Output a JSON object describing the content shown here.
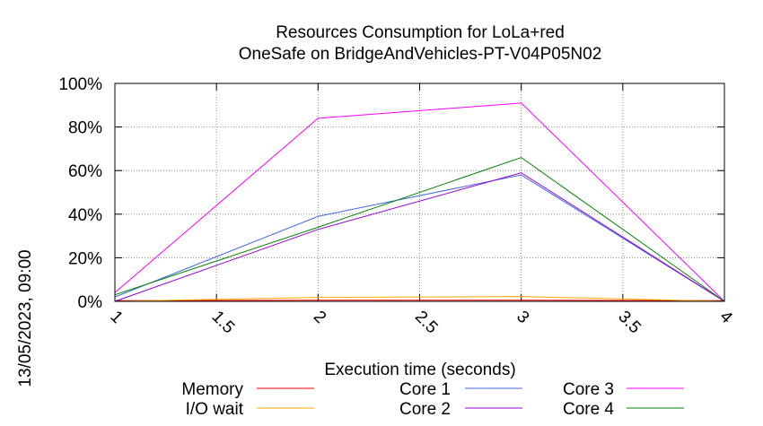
{
  "chart_data": {
    "type": "line",
    "title": "Resources Consumption for LoLa+red",
    "subtitle": "OneSafe on BridgeAndVehicles-PT-V04P05N02",
    "xlabel": "Execution time (seconds)",
    "ylabel": "13/05/2023, 09:00",
    "x": [
      1,
      2,
      3,
      4
    ],
    "xlim": [
      1,
      4
    ],
    "ylim": [
      0,
      100
    ],
    "xticks": [
      "1",
      "1.5",
      "2",
      "2.5",
      "3",
      "3.5",
      "4"
    ],
    "xtick_values": [
      1,
      1.5,
      2,
      2.5,
      3,
      3.5,
      4
    ],
    "yticks": [
      "0%",
      "20%",
      "40%",
      "60%",
      "80%",
      "100%"
    ],
    "ytick_values": [
      0,
      20,
      40,
      60,
      80,
      100
    ],
    "grid": true,
    "legend_position": "bottom",
    "series": [
      {
        "name": "Memory",
        "color": "#ff0000",
        "values": [
          0.3,
          0.5,
          0.5,
          0.3
        ]
      },
      {
        "name": "I/O wait",
        "color": "#ffa500",
        "values": [
          0,
          1.8,
          2.2,
          0
        ]
      },
      {
        "name": "Core 1",
        "color": "#4169e1",
        "values": [
          2,
          39,
          58,
          0
        ]
      },
      {
        "name": "Core 2",
        "color": "#9400d3",
        "values": [
          0,
          33,
          59,
          0
        ]
      },
      {
        "name": "Core 3",
        "color": "#ff00ff",
        "values": [
          4,
          84,
          91,
          0
        ]
      },
      {
        "name": "Core 4",
        "color": "#008000",
        "values": [
          3,
          34,
          66,
          0
        ]
      }
    ]
  }
}
